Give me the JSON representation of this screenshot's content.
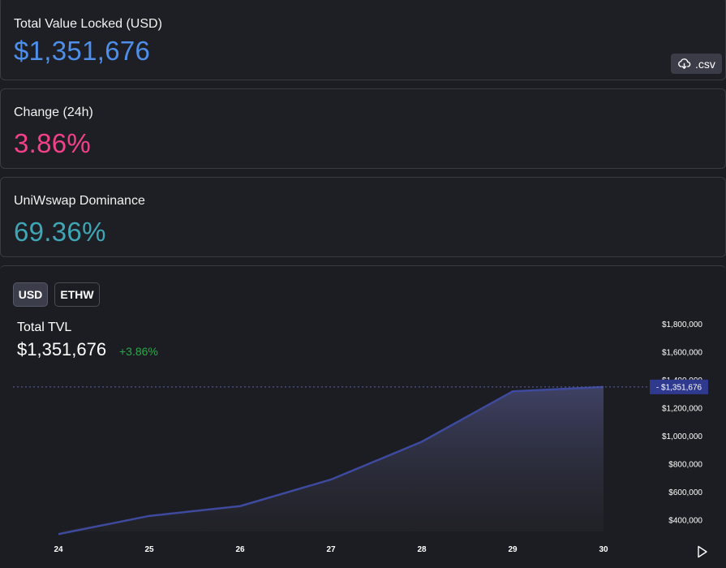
{
  "stats": {
    "tvl": {
      "label": "Total Value Locked (USD)",
      "value": "$1,351,676"
    },
    "change": {
      "label": "Change (24h)",
      "value": "3.86%"
    },
    "dominance": {
      "label": "UniWswap Dominance",
      "value": "69.36%"
    }
  },
  "csv_button": {
    "label": ".csv",
    "icon": "cloud-download-icon"
  },
  "toggles": {
    "usd": "USD",
    "ethw": "ETHW",
    "selected": "USD"
  },
  "legend": {
    "title": "Total TVL",
    "value": "$1,351,676",
    "change": "+3.86%"
  },
  "colors": {
    "tvl": "#4d8fea",
    "change": "#f4408a",
    "dominance": "#3fa6b5",
    "line": "#3d4a9e",
    "positive": "#2aa84a",
    "price_tag": "#2f3a8f"
  },
  "chart_data": {
    "type": "area",
    "x": [
      "24",
      "25",
      "26",
      "27",
      "28",
      "29",
      "30"
    ],
    "values": [
      300000,
      430000,
      500000,
      690000,
      960000,
      1320000,
      1351676
    ],
    "y_ticks": [
      "$400,000",
      "$600,000",
      "$800,000",
      "$1,000,000",
      "$1,200,000",
      "$1,400,000",
      "$1,600,000",
      "$1,800,000"
    ],
    "y_tick_values": [
      400000,
      600000,
      800000,
      1000000,
      1200000,
      1400000,
      1600000,
      1800000
    ],
    "last_value": 1351676,
    "last_value_label": "$1,351,676",
    "ylim": [
      300000,
      1800000
    ],
    "grid": false
  }
}
